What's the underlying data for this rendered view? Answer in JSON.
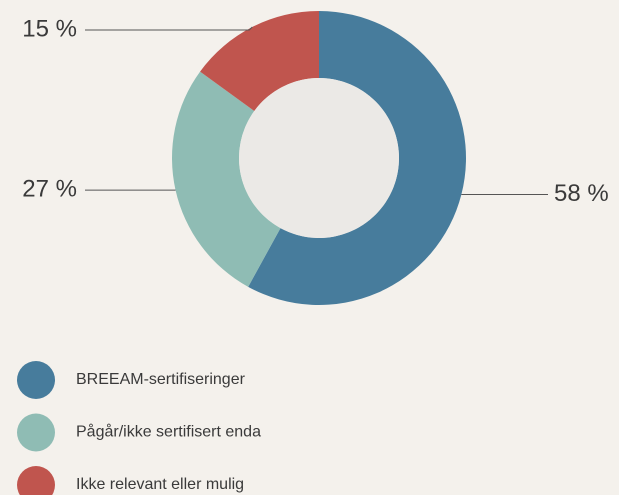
{
  "chart_data": {
    "type": "donut",
    "categories": [
      "BREEAM-sertifiseringer",
      "Pågår/ikke sertifisert enda",
      "Ikke relevant eller mulig"
    ],
    "values": [
      58,
      27,
      15
    ],
    "value_labels": [
      "58 %",
      "27 %",
      "15 %"
    ],
    "colors": [
      "#477c9c",
      "#8fbcb4",
      "#c0554e"
    ],
    "legend": "bottom-left"
  }
}
